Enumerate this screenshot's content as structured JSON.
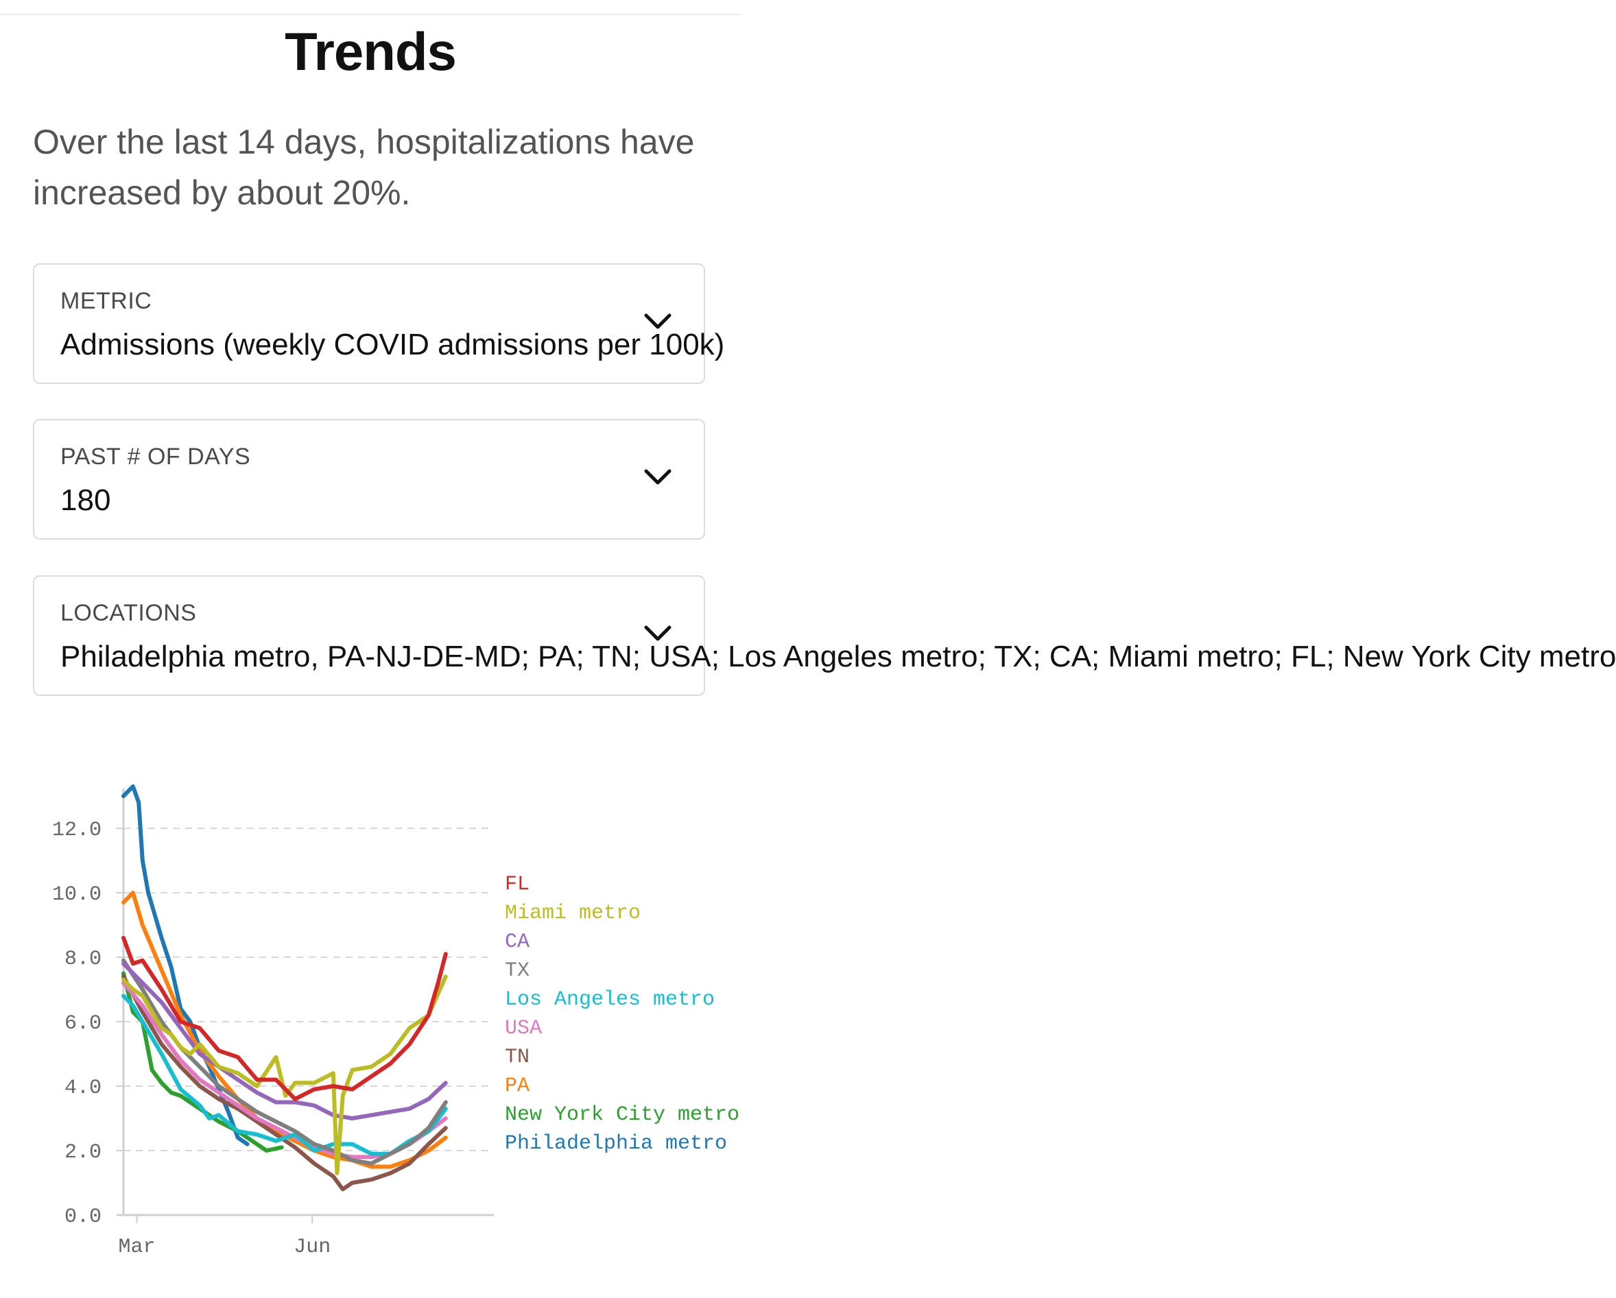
{
  "page": {
    "title": "Trends",
    "summary": "Over the last 14 days, hospitalizations have increased by about 20%."
  },
  "controls": {
    "metric": {
      "label": "METRIC",
      "value": "Admissions (weekly COVID admissions per 100k)"
    },
    "days": {
      "label": "PAST # OF DAYS",
      "value": "180"
    },
    "locations": {
      "label": "LOCATIONS",
      "value": "Philadelphia metro, PA-NJ-DE-MD; PA; TN; USA; Los Angeles metro; TX; CA; Miami metro; FL; New York City metro"
    }
  },
  "icons": {
    "chevron": "chevron-down-icon"
  },
  "chart_data": {
    "type": "line",
    "title": "",
    "xlabel": "",
    "ylabel": "",
    "ylim": [
      0,
      13.5
    ],
    "yticks": [
      "0.0",
      "2.0",
      "4.0",
      "6.0",
      "8.0",
      "10.0",
      "12.0"
    ],
    "xticks": [
      {
        "label": "Mar",
        "day": 7
      },
      {
        "label": "Jun",
        "day": 99
      }
    ],
    "x_unit": "day index over past 180 days",
    "grid": true,
    "legend_position": "right",
    "series": [
      {
        "name": "FL",
        "color": "#d62728",
        "end_day": 169,
        "x": [
          0,
          5,
          10,
          20,
          30,
          40,
          50,
          60,
          70,
          80,
          90,
          100,
          110,
          120,
          130,
          140,
          150,
          160,
          165,
          169
        ],
        "y": [
          8.6,
          7.8,
          7.9,
          7.0,
          6.0,
          5.8,
          5.1,
          4.9,
          4.2,
          4.2,
          3.6,
          3.9,
          4.0,
          3.9,
          4.3,
          4.7,
          5.3,
          6.2,
          7.2,
          8.1
        ]
      },
      {
        "name": "Miami metro",
        "color": "#bcbd22",
        "end_day": 169,
        "x": [
          0,
          5,
          10,
          15,
          20,
          25,
          30,
          35,
          40,
          50,
          60,
          70,
          80,
          85,
          90,
          100,
          110,
          112,
          115,
          120,
          130,
          140,
          150,
          160,
          169
        ],
        "y": [
          7.3,
          7.0,
          6.8,
          6.3,
          5.8,
          5.6,
          5.2,
          5.0,
          5.3,
          4.6,
          4.4,
          4.0,
          4.9,
          3.7,
          4.1,
          4.1,
          4.4,
          1.3,
          3.7,
          4.5,
          4.6,
          5.0,
          5.8,
          6.2,
          7.4
        ]
      },
      {
        "name": "CA",
        "color": "#9467bd",
        "end_day": 169,
        "x": [
          0,
          10,
          20,
          30,
          40,
          50,
          60,
          70,
          80,
          90,
          100,
          110,
          120,
          130,
          140,
          150,
          160,
          169
        ],
        "y": [
          7.8,
          7.2,
          6.6,
          5.8,
          5.0,
          4.6,
          4.2,
          3.8,
          3.5,
          3.5,
          3.4,
          3.1,
          3.0,
          3.1,
          3.2,
          3.3,
          3.6,
          4.1
        ]
      },
      {
        "name": "TX",
        "color": "#7f7f7f",
        "end_day": 169,
        "x": [
          0,
          10,
          20,
          30,
          40,
          50,
          60,
          70,
          80,
          90,
          100,
          110,
          120,
          130,
          140,
          150,
          160,
          169
        ],
        "y": [
          7.9,
          7.0,
          6.0,
          5.2,
          4.6,
          4.0,
          3.6,
          3.2,
          2.9,
          2.6,
          2.2,
          2.0,
          1.7,
          1.6,
          1.9,
          2.2,
          2.7,
          3.5
        ]
      },
      {
        "name": "Los Angeles metro",
        "color": "#17becf",
        "end_day": 169,
        "x": [
          0,
          5,
          10,
          20,
          30,
          40,
          45,
          50,
          60,
          70,
          80,
          90,
          100,
          110,
          120,
          130,
          140,
          150,
          160,
          169
        ],
        "y": [
          6.8,
          6.5,
          6.0,
          5.0,
          3.9,
          3.4,
          3.0,
          3.1,
          2.6,
          2.5,
          2.3,
          2.5,
          2.0,
          2.2,
          2.2,
          1.9,
          1.9,
          2.3,
          2.6,
          3.3
        ]
      },
      {
        "name": "USA",
        "color": "#e377c2",
        "end_day": 169,
        "x": [
          0,
          10,
          20,
          30,
          40,
          50,
          60,
          70,
          80,
          90,
          100,
          110,
          120,
          130,
          140,
          150,
          160,
          169
        ],
        "y": [
          7.2,
          6.5,
          5.6,
          4.8,
          4.2,
          3.8,
          3.4,
          3.0,
          2.7,
          2.4,
          2.1,
          1.9,
          1.8,
          1.8,
          1.9,
          2.2,
          2.6,
          3.0
        ]
      },
      {
        "name": "TN",
        "color": "#8c564b",
        "end_day": 169,
        "x": [
          0,
          10,
          20,
          30,
          40,
          50,
          60,
          70,
          80,
          90,
          100,
          110,
          115,
          120,
          130,
          140,
          150,
          160,
          169
        ],
        "y": [
          7.4,
          6.3,
          5.3,
          4.6,
          4.0,
          3.6,
          3.3,
          2.9,
          2.5,
          2.1,
          1.6,
          1.2,
          0.8,
          1.0,
          1.1,
          1.3,
          1.6,
          2.2,
          2.7
        ]
      },
      {
        "name": "PA",
        "color": "#ff7f0e",
        "end_day": 169,
        "x": [
          0,
          5,
          10,
          20,
          30,
          40,
          50,
          60,
          70,
          80,
          90,
          100,
          110,
          120,
          130,
          140,
          150,
          160,
          169
        ],
        "y": [
          9.7,
          10.0,
          9.0,
          7.6,
          6.2,
          5.1,
          4.3,
          3.6,
          3.0,
          2.6,
          2.3,
          2.0,
          1.8,
          1.7,
          1.5,
          1.5,
          1.7,
          2.0,
          2.4
        ]
      },
      {
        "name": "New York City metro",
        "color": "#2ca02c",
        "end_day": 83,
        "x": [
          0,
          5,
          10,
          15,
          20,
          25,
          30,
          40,
          50,
          60,
          70,
          75,
          83
        ],
        "y": [
          7.5,
          6.3,
          6.0,
          4.5,
          4.1,
          3.8,
          3.7,
          3.3,
          2.9,
          2.6,
          2.2,
          2.0,
          2.1
        ]
      },
      {
        "name": "Philadelphia metro",
        "color": "#1f77b4",
        "end_day": 65,
        "x": [
          0,
          5,
          8,
          10,
          13,
          15,
          20,
          25,
          30,
          35,
          40,
          45,
          50,
          55,
          60,
          65
        ],
        "y": [
          13.0,
          13.3,
          12.8,
          11.0,
          10.0,
          9.6,
          8.6,
          7.7,
          6.4,
          6.0,
          5.2,
          4.6,
          3.9,
          3.2,
          2.4,
          2.2
        ]
      }
    ]
  }
}
